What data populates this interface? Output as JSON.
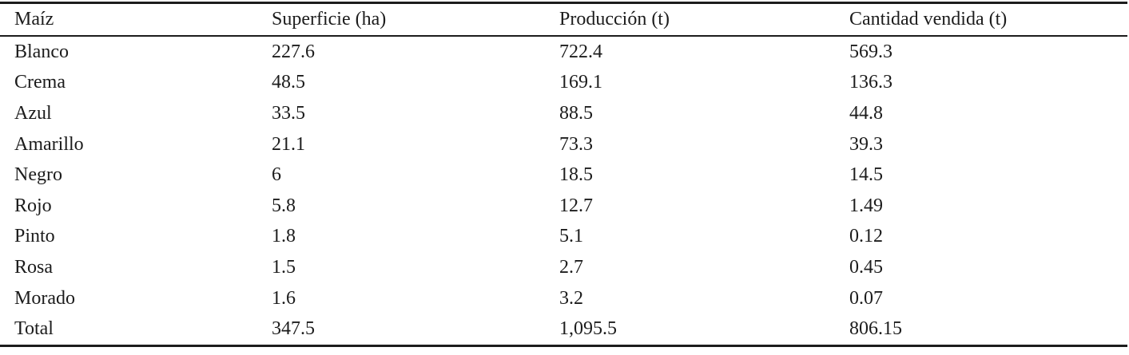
{
  "colors": {
    "background": "#ffffff",
    "text": "#1c1c1c",
    "rule": "#1c1c1c"
  },
  "chart_data": {
    "type": "table",
    "title": "",
    "columns": [
      "Maíz",
      "Superficie (ha)",
      "Producción (t)",
      "Cantidad vendida (t)"
    ],
    "rows": [
      [
        "Blanco",
        "227.6",
        "722.4",
        "569.3"
      ],
      [
        "Crema",
        "48.5",
        "169.1",
        "136.3"
      ],
      [
        "Azul",
        "33.5",
        "88.5",
        "44.8"
      ],
      [
        "Amarillo",
        "21.1",
        "73.3",
        "39.3"
      ],
      [
        "Negro",
        "6",
        "18.5",
        "14.5"
      ],
      [
        "Rojo",
        "5.8",
        "12.7",
        "1.49"
      ],
      [
        "Pinto",
        "1.8",
        "5.1",
        "0.12"
      ],
      [
        "Rosa",
        "1.5",
        "2.7",
        "0.45"
      ],
      [
        "Morado",
        "1.6",
        "3.2",
        "0.07"
      ],
      [
        "Total",
        "347.5",
        "1,095.5",
        "806.15"
      ]
    ]
  }
}
